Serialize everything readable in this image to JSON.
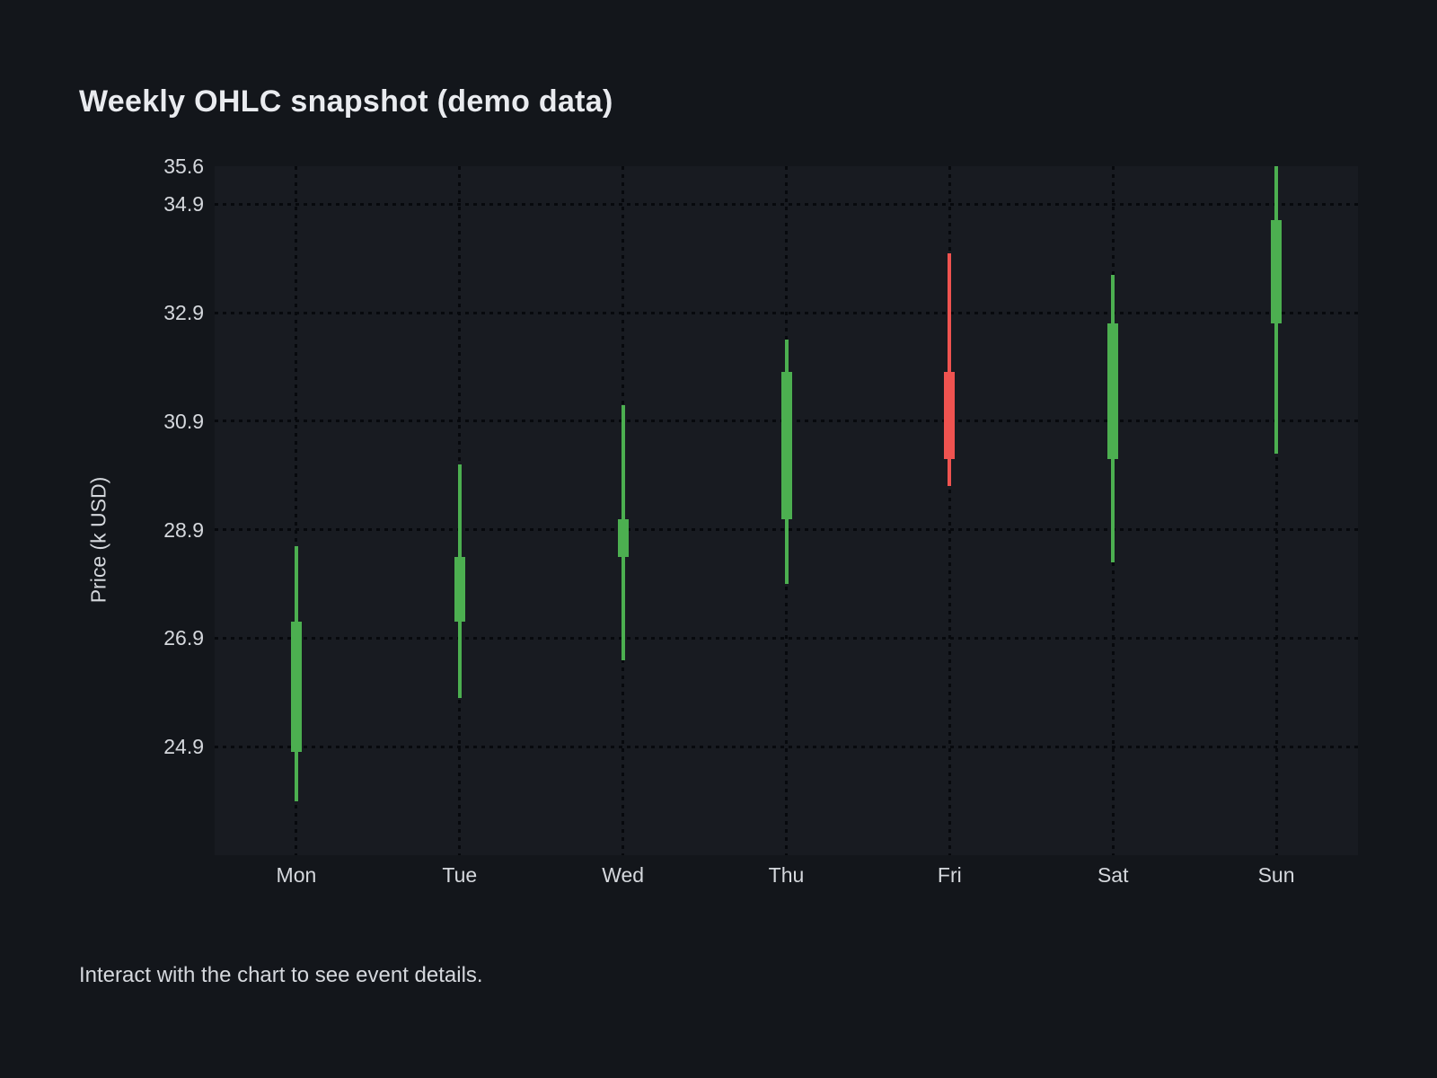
{
  "title": "Weekly OHLC snapshot (demo data)",
  "footer": "Interact with the chart to see event details.",
  "chart_data": {
    "type": "candlestick",
    "title": "Weekly OHLC snapshot (demo data)",
    "xlabel": "",
    "ylabel": "Price (k USD)",
    "categories": [
      "Mon",
      "Tue",
      "Wed",
      "Thu",
      "Fri",
      "Sat",
      "Sun"
    ],
    "series": [
      {
        "name": "OHLC",
        "points": [
          {
            "day": "Mon",
            "open": 24.8,
            "high": 28.6,
            "low": 23.9,
            "close": 27.2,
            "direction": "up"
          },
          {
            "day": "Tue",
            "open": 27.2,
            "high": 30.1,
            "low": 25.8,
            "close": 28.4,
            "direction": "up"
          },
          {
            "day": "Wed",
            "open": 28.4,
            "high": 31.2,
            "low": 26.5,
            "close": 29.1,
            "direction": "up"
          },
          {
            "day": "Thu",
            "open": 29.1,
            "high": 32.4,
            "low": 27.9,
            "close": 31.8,
            "direction": "up"
          },
          {
            "day": "Fri",
            "open": 31.8,
            "high": 34.0,
            "low": 29.7,
            "close": 30.2,
            "direction": "down"
          },
          {
            "day": "Sat",
            "open": 30.2,
            "high": 33.6,
            "low": 28.3,
            "close": 32.7,
            "direction": "up"
          },
          {
            "day": "Sun",
            "open": 32.7,
            "high": 35.6,
            "low": 30.3,
            "close": 34.6,
            "direction": "up"
          }
        ]
      }
    ],
    "ylim": [
      22.9,
      35.6
    ],
    "yticks": [
      {
        "label": "35.6",
        "value": 35.6,
        "gridline": false
      },
      {
        "label": "34.9",
        "value": 34.9,
        "gridline": true
      },
      {
        "label": "32.9",
        "value": 32.9,
        "gridline": true
      },
      {
        "label": "30.9",
        "value": 30.9,
        "gridline": true
      },
      {
        "label": "28.9",
        "value": 28.9,
        "gridline": true
      },
      {
        "label": "26.9",
        "value": 26.9,
        "gridline": true
      },
      {
        "label": "24.9",
        "value": 24.9,
        "gridline": true
      }
    ],
    "grid": "dotted",
    "legend": "none",
    "colors": {
      "up": "#4caf50",
      "down": "#ef5350",
      "background": "#13161b",
      "plot_background": "#181b21",
      "text": "#d5d8dd",
      "gridline": "#07090d"
    }
  }
}
